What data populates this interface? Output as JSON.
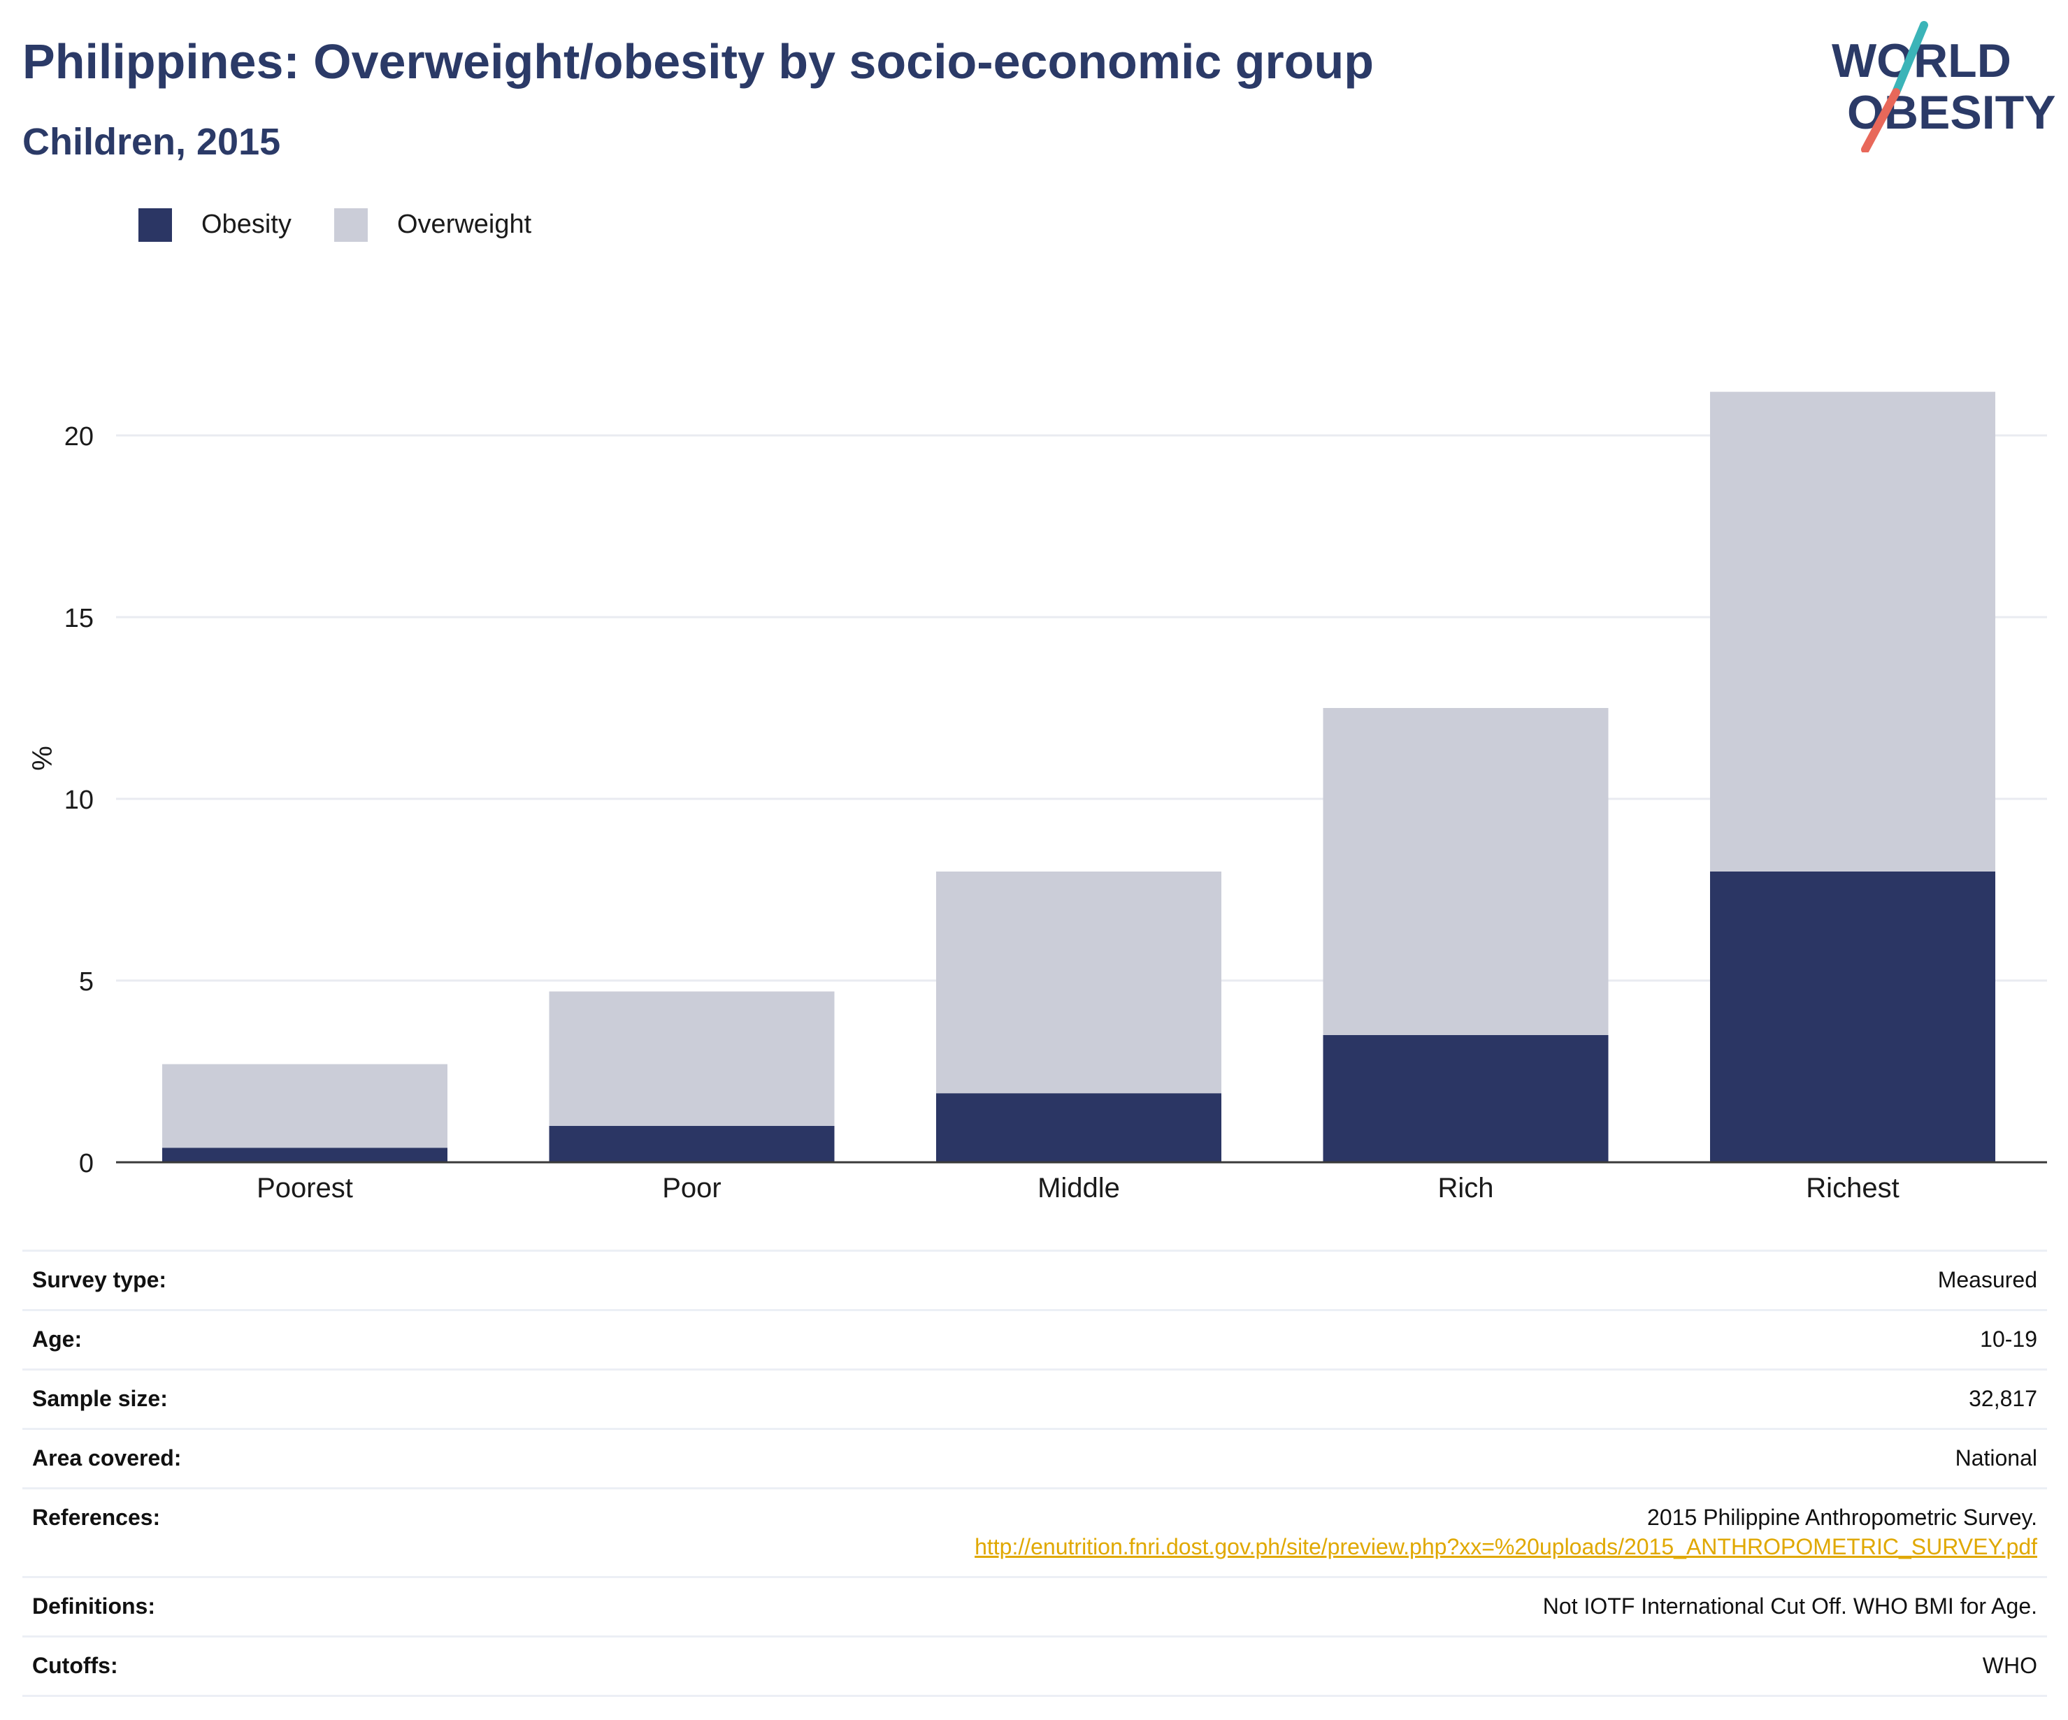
{
  "header": {
    "title": "Philippines: Overweight/obesity by socio-economic group",
    "subtitle": "Children, 2015"
  },
  "logo": {
    "line1": "WORLD",
    "line2": "OBESITY",
    "accent_colors": [
      "#3bb4b8",
      "#e8685a"
    ],
    "text_color": "#2b3a67"
  },
  "legend": {
    "items": [
      {
        "label": "Obesity",
        "color": "#2b3664"
      },
      {
        "label": "Overweight",
        "color": "#cbcdd8"
      }
    ]
  },
  "chart_data": {
    "type": "bar",
    "stacked": true,
    "categories": [
      "Poorest",
      "Poor",
      "Middle",
      "Rich",
      "Richest"
    ],
    "series": [
      {
        "name": "Obesity",
        "values": [
          0.4,
          1.0,
          1.9,
          3.5,
          8.0
        ],
        "color": "#2b3664"
      },
      {
        "name": "Overweight",
        "values": [
          2.3,
          3.7,
          6.1,
          9.0,
          13.2
        ],
        "color": "#cbcdd8"
      }
    ],
    "ylabel": "%",
    "ylim": [
      0,
      22
    ],
    "yticks": [
      0,
      5,
      10,
      15,
      20
    ],
    "grid": true,
    "legend_position": "top-left"
  },
  "meta": {
    "rows": [
      {
        "key": "Survey type:",
        "value": "Measured"
      },
      {
        "key": "Age:",
        "value": "10-19"
      },
      {
        "key": "Sample size:",
        "value": "32,817"
      },
      {
        "key": "Area covered:",
        "value": "National"
      },
      {
        "key": "References:",
        "value": "2015 Philippine Anthropometric Survey.",
        "link": "http://enutrition.fnri.dost.gov.ph/site/preview.php?xx=%20uploads/2015_ANTHROPOMETRIC_SURVEY.pdf"
      },
      {
        "key": "Definitions:",
        "value": "Not IOTF International Cut Off. WHO BMI for Age."
      },
      {
        "key": "Cutoffs:",
        "value": "WHO"
      }
    ]
  }
}
